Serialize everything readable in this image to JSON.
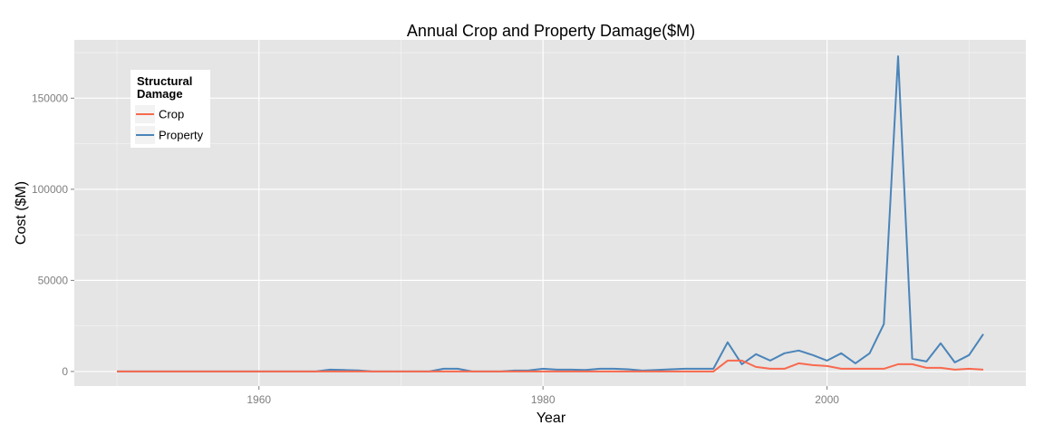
{
  "chart_data": {
    "type": "line",
    "title": "Annual Crop and Property Damage($M)",
    "xlabel": "Year",
    "ylabel": "Cost ($M)",
    "xlim": [
      1947,
      2014
    ],
    "ylim": [
      -8000,
      182000
    ],
    "x_ticks": [
      1960,
      1980,
      2000
    ],
    "y_ticks": [
      0,
      50000,
      100000,
      150000
    ],
    "y_tick_labels": [
      "0",
      "50000",
      "100000",
      "150000"
    ],
    "grid": true,
    "legend": {
      "title": "Structural\nDamage",
      "position": "top-left"
    },
    "colors": {
      "panel": "#e5e5e5",
      "grid_major": "#ffffff",
      "grid_minor": "#f2f2f2",
      "crop": "#f8694e",
      "property": "#4a84b9"
    },
    "series": [
      {
        "name": "Crop",
        "color": "#f8694e",
        "x": [
          1950,
          1951,
          1952,
          1953,
          1954,
          1955,
          1956,
          1957,
          1958,
          1959,
          1960,
          1961,
          1962,
          1963,
          1964,
          1965,
          1966,
          1967,
          1968,
          1969,
          1970,
          1971,
          1972,
          1973,
          1974,
          1975,
          1976,
          1977,
          1978,
          1979,
          1980,
          1981,
          1982,
          1983,
          1984,
          1985,
          1986,
          1987,
          1988,
          1989,
          1990,
          1991,
          1992,
          1993,
          1994,
          1995,
          1996,
          1997,
          1998,
          1999,
          2000,
          2001,
          2002,
          2003,
          2004,
          2005,
          2006,
          2007,
          2008,
          2009,
          2010,
          2011
        ],
        "y": [
          0,
          0,
          0,
          0,
          0,
          0,
          0,
          0,
          0,
          0,
          0,
          0,
          0,
          0,
          0,
          0,
          0,
          0,
          0,
          0,
          0,
          0,
          0,
          0,
          0,
          0,
          0,
          0,
          0,
          0,
          0,
          0,
          0,
          0,
          0,
          0,
          0,
          0,
          0,
          0,
          0,
          0,
          0,
          6000,
          6000,
          2500,
          1500,
          1500,
          4500,
          3500,
          3000,
          1500,
          1500,
          1500,
          1500,
          4000,
          4000,
          2000,
          2000,
          1000,
          1500,
          1000
        ]
      },
      {
        "name": "Property",
        "color": "#4a84b9",
        "x": [
          1950,
          1951,
          1952,
          1953,
          1954,
          1955,
          1956,
          1957,
          1958,
          1959,
          1960,
          1961,
          1962,
          1963,
          1964,
          1965,
          1966,
          1967,
          1968,
          1969,
          1970,
          1971,
          1972,
          1973,
          1974,
          1975,
          1976,
          1977,
          1978,
          1979,
          1980,
          1981,
          1982,
          1983,
          1984,
          1985,
          1986,
          1987,
          1988,
          1989,
          1990,
          1991,
          1992,
          1993,
          1994,
          1995,
          1996,
          1997,
          1998,
          1999,
          2000,
          2001,
          2002,
          2003,
          2004,
          2005,
          2006,
          2007,
          2008,
          2009,
          2010,
          2011
        ],
        "y": [
          0,
          0,
          0,
          0,
          0,
          0,
          0,
          0,
          0,
          0,
          0,
          0,
          0,
          0,
          0,
          1000,
          800,
          600,
          0,
          0,
          0,
          0,
          0,
          1500,
          1500,
          0,
          0,
          0,
          500,
          600,
          1500,
          1000,
          1000,
          800,
          1500,
          1500,
          1200,
          500,
          800,
          1200,
          1500,
          1500,
          1500,
          16000,
          4000,
          9500,
          6000,
          10000,
          11500,
          9000,
          6000,
          10000,
          4500,
          10000,
          26000,
          173000,
          7000,
          5500,
          15500,
          5000,
          9000,
          20500
        ]
      }
    ]
  }
}
